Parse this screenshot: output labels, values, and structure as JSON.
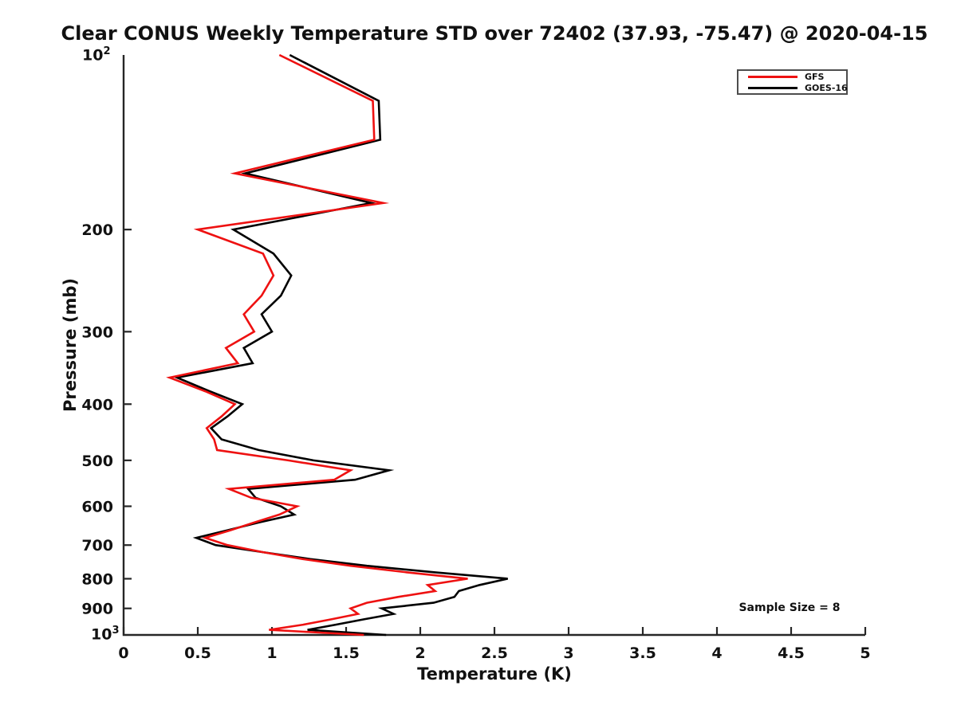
{
  "figure": {
    "title": "Clear CONUS Weekly Temperature STD over 72402 (37.93, -75.47) @ 2020-04-15",
    "xlabel": "Temperature (K)",
    "ylabel": "Pressure (mb)",
    "annotation": "Sample Size = 8",
    "y_axis_top_base": "10",
    "y_axis_top_exp": "2",
    "y_axis_bottom_base": "10",
    "y_axis_bottom_exp": "3"
  },
  "chart_data": {
    "type": "line",
    "title": "Clear CONUS Weekly Temperature STD over 72402 (37.93, -75.47) @ 2020-04-15",
    "xlabel": "Temperature (K)",
    "ylabel": "Pressure (mb)",
    "xlim": [
      0,
      5
    ],
    "ylim": [
      100,
      1000
    ],
    "y_scale": "log",
    "y_inverted": true,
    "grid": false,
    "legend_position": "upper right",
    "annotation": "Sample Size = 8",
    "sample_size": 8,
    "x_ticks": [
      0,
      0.5,
      1,
      1.5,
      2,
      2.5,
      3,
      3.5,
      4,
      4.5,
      5
    ],
    "x_tick_labels": [
      "0",
      "0.5",
      "1",
      "1.5",
      "2",
      "2.5",
      "3",
      "3.5",
      "4",
      "4.5",
      "5"
    ],
    "y_ticks": [
      200,
      300,
      400,
      500,
      600,
      700,
      800,
      900
    ],
    "y_tick_labels": [
      "200",
      "300",
      "400",
      "500",
      "600",
      "700",
      "800",
      "900"
    ],
    "axis_color": "#262626",
    "levels_mb": [
      100,
      120,
      140,
      160,
      180,
      200,
      220,
      240,
      260,
      280,
      300,
      320,
      340,
      360,
      380,
      400,
      420,
      440,
      460,
      480,
      500,
      520,
      540,
      560,
      580,
      600,
      620,
      640,
      660,
      680,
      700,
      720,
      740,
      760,
      780,
      800,
      820,
      840,
      860,
      880,
      900,
      920,
      940,
      960,
      980,
      1000
    ],
    "series": [
      {
        "name": "GOES-16",
        "color": "#000000",
        "values": [
          1.12,
          1.72,
          1.73,
          0.82,
          1.67,
          0.74,
          1.01,
          1.13,
          1.06,
          0.93,
          1.0,
          0.81,
          0.87,
          0.36,
          0.58,
          0.8,
          0.7,
          0.59,
          0.66,
          0.91,
          1.28,
          1.79,
          1.56,
          0.84,
          0.89,
          1.06,
          1.15,
          0.91,
          0.7,
          0.49,
          0.62,
          0.94,
          1.26,
          1.64,
          2.1,
          2.59,
          2.4,
          2.26,
          2.23,
          2.09,
          1.74,
          1.82,
          1.62,
          1.43,
          1.24,
          1.77
        ]
      },
      {
        "name": "GFS",
        "color": "#ee1111",
        "values": [
          1.05,
          1.68,
          1.69,
          0.75,
          1.75,
          0.5,
          0.94,
          1.01,
          0.93,
          0.81,
          0.88,
          0.69,
          0.77,
          0.31,
          0.55,
          0.75,
          0.66,
          0.56,
          0.61,
          0.63,
          1.11,
          1.53,
          1.42,
          0.71,
          0.86,
          1.17,
          1.05,
          0.88,
          0.72,
          0.55,
          0.7,
          0.94,
          1.21,
          1.53,
          1.91,
          2.32,
          2.05,
          2.1,
          1.85,
          1.64,
          1.53,
          1.58,
          1.4,
          1.21,
          0.98,
          1.62
        ]
      }
    ],
    "legend_order": [
      "GFS",
      "GOES-16"
    ]
  }
}
